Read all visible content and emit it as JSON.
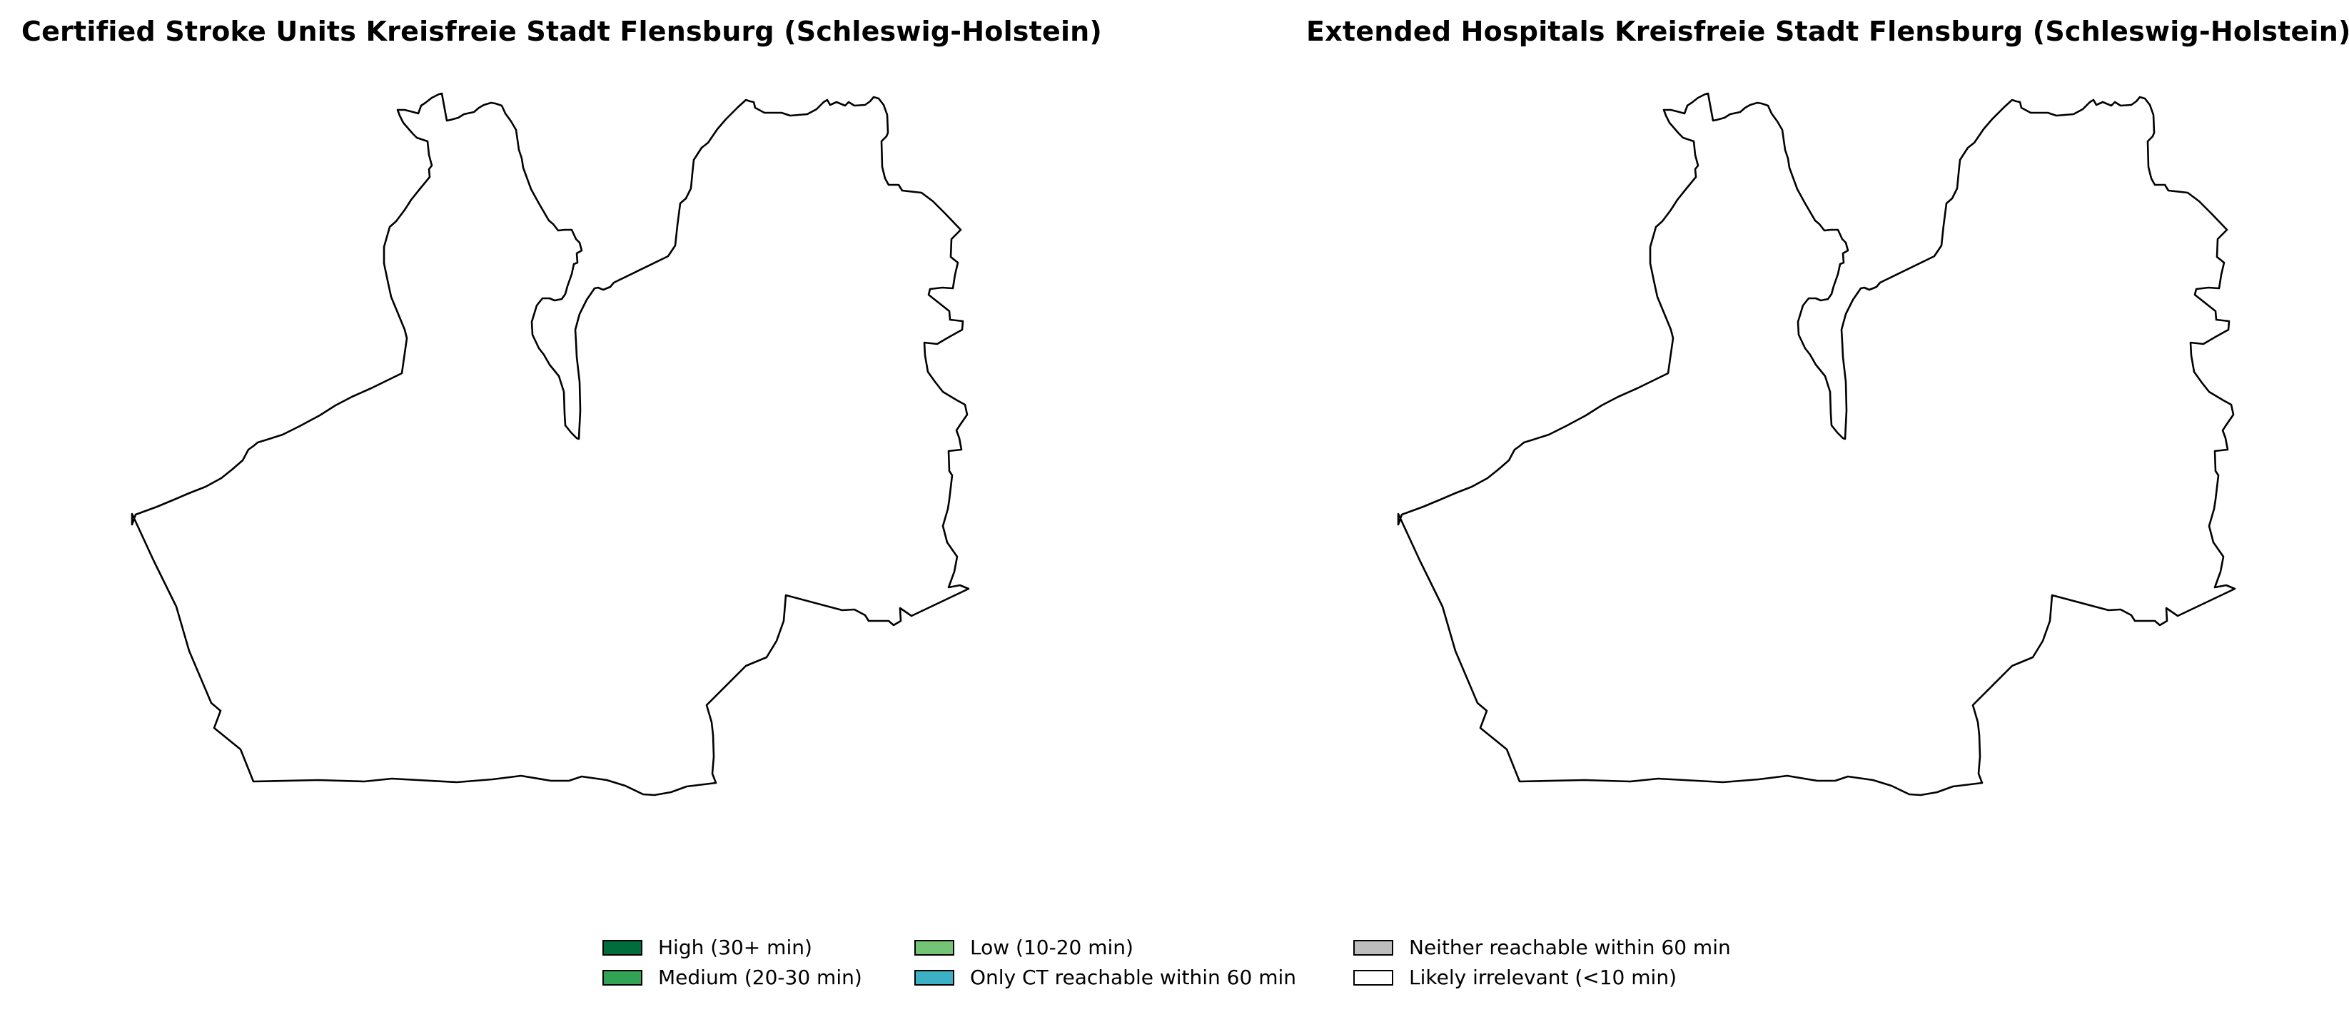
{
  "maps": [
    {
      "title": "Certified Stroke Units Kreisfreie Stadt Flensburg (Schleswig-Holstein)",
      "region_fill": "#ffffff",
      "boundary_color": "#000000"
    },
    {
      "title": "Extended Hospitals Kreisfreie Stadt Flensburg (Schleswig-Holstein)",
      "region_fill": "#ffffff",
      "boundary_color": "#000000"
    }
  ],
  "legend": {
    "placement": "bottom-center",
    "items": [
      {
        "label": "High (30+ min)",
        "color": "#006d3c"
      },
      {
        "label": "Medium (20-30 min)",
        "color": "#31a354"
      },
      {
        "label": "Low (10-20 min)",
        "color": "#74c476"
      },
      {
        "label": "Only CT reachable within 60 min",
        "color": "#3cb0c4"
      },
      {
        "label": "Neither reachable within 60 min",
        "color": "#bdbdbd"
      },
      {
        "label": "Likely irrelevant (<10 min)",
        "color": "#ffffff"
      }
    ]
  }
}
